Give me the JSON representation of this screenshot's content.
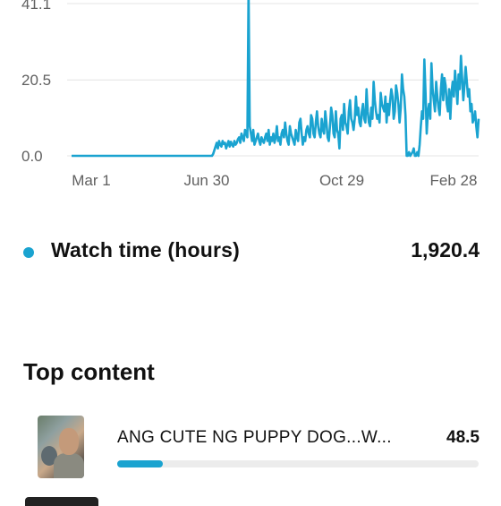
{
  "chart_data": {
    "type": "line",
    "series": [
      {
        "name": "Watch time (hours)",
        "color": "#1aa3d0",
        "values": [
          0,
          0,
          0,
          0,
          0,
          0,
          0,
          0,
          0,
          0,
          0,
          0,
          0,
          0,
          0,
          0,
          0,
          0,
          0,
          0,
          0,
          0,
          0,
          0,
          0,
          0,
          0,
          0,
          0,
          0,
          0,
          0,
          0,
          0,
          0,
          0,
          0,
          0,
          0,
          0,
          0,
          0,
          0,
          0,
          0,
          0,
          0,
          0,
          0,
          0,
          0,
          0,
          0,
          0,
          0,
          0,
          0,
          0,
          0,
          0,
          0,
          0,
          0,
          0,
          0,
          0,
          0,
          0,
          0,
          0,
          0,
          0,
          0,
          0,
          0,
          0,
          0,
          0,
          0,
          0,
          0,
          0,
          0,
          0,
          0,
          0,
          0,
          0,
          0,
          0,
          0,
          0,
          0,
          0,
          0,
          0,
          0,
          0,
          0,
          0,
          0,
          0,
          0,
          0,
          0,
          0,
          0,
          0,
          0,
          0,
          0,
          0,
          0,
          0,
          0,
          0,
          0,
          0,
          0,
          0,
          0.5,
          1.5,
          2.5,
          3.5,
          2,
          4,
          3,
          2.5,
          4,
          3.2,
          3.5,
          2,
          3,
          4,
          2.5,
          3.8,
          3,
          2.5,
          4,
          3,
          3.5,
          4.5,
          5,
          3.5,
          6,
          5,
          4,
          7,
          6,
          5,
          45,
          8,
          6,
          4,
          7,
          3,
          4,
          5,
          6,
          4,
          3,
          5,
          4,
          3.5,
          5,
          6,
          4,
          7,
          3,
          5,
          4,
          6,
          3.5,
          5,
          8,
          4,
          5,
          3,
          6,
          7,
          5,
          9,
          6,
          4,
          3,
          8,
          6,
          5,
          4,
          3,
          7,
          5,
          4,
          9,
          10,
          6,
          3,
          5,
          4,
          7,
          8,
          6,
          5,
          11,
          10,
          6,
          5,
          9,
          12,
          8,
          6,
          5,
          10,
          7,
          6,
          12,
          9,
          5,
          4,
          8,
          13,
          11,
          6,
          5,
          12,
          7,
          6,
          2,
          10,
          11,
          7,
          14,
          9,
          8,
          6,
          12,
          15,
          10,
          9,
          7,
          10,
          16,
          11,
          13,
          9,
          8,
          12,
          14,
          10,
          9,
          18,
          12,
          9,
          8,
          13,
          10,
          20,
          15,
          12,
          10,
          11,
          9,
          17,
          14,
          13,
          12,
          16,
          9,
          14,
          11,
          15,
          18,
          16,
          10,
          12,
          19,
          17,
          14,
          9,
          13,
          22,
          18,
          16,
          11,
          0,
          0,
          1,
          0,
          0.5,
          1,
          2,
          0,
          0,
          1,
          0,
          3,
          8,
          12,
          10,
          26,
          17,
          6,
          12,
          14,
          10,
          25,
          18,
          15,
          12,
          20,
          16,
          13,
          11,
          18,
          22,
          15,
          21,
          19,
          14,
          12,
          18,
          10,
          17,
          20,
          16,
          23,
          19,
          14,
          22,
          18,
          27,
          21,
          15,
          19,
          24,
          20,
          16,
          18,
          12,
          14,
          9,
          10,
          12,
          8,
          5,
          10
        ]
      }
    ],
    "x_tick_labels": [
      "Mar 1",
      "Jun 30",
      "Oct 29",
      "Feb 28"
    ],
    "y_tick_labels": [
      "0.0",
      "20.5",
      "41.1"
    ],
    "ylim": [
      0,
      41.1
    ],
    "grid": true
  },
  "metric": {
    "label": "Watch time (hours)",
    "value": "1,920.4",
    "dot_color": "#1aa3d0"
  },
  "top_content": {
    "title": "Top content",
    "items": [
      {
        "title": "ANG CUTE NG PUPPY DOG...W...",
        "value": "48.5",
        "progress": 0.125
      }
    ]
  }
}
